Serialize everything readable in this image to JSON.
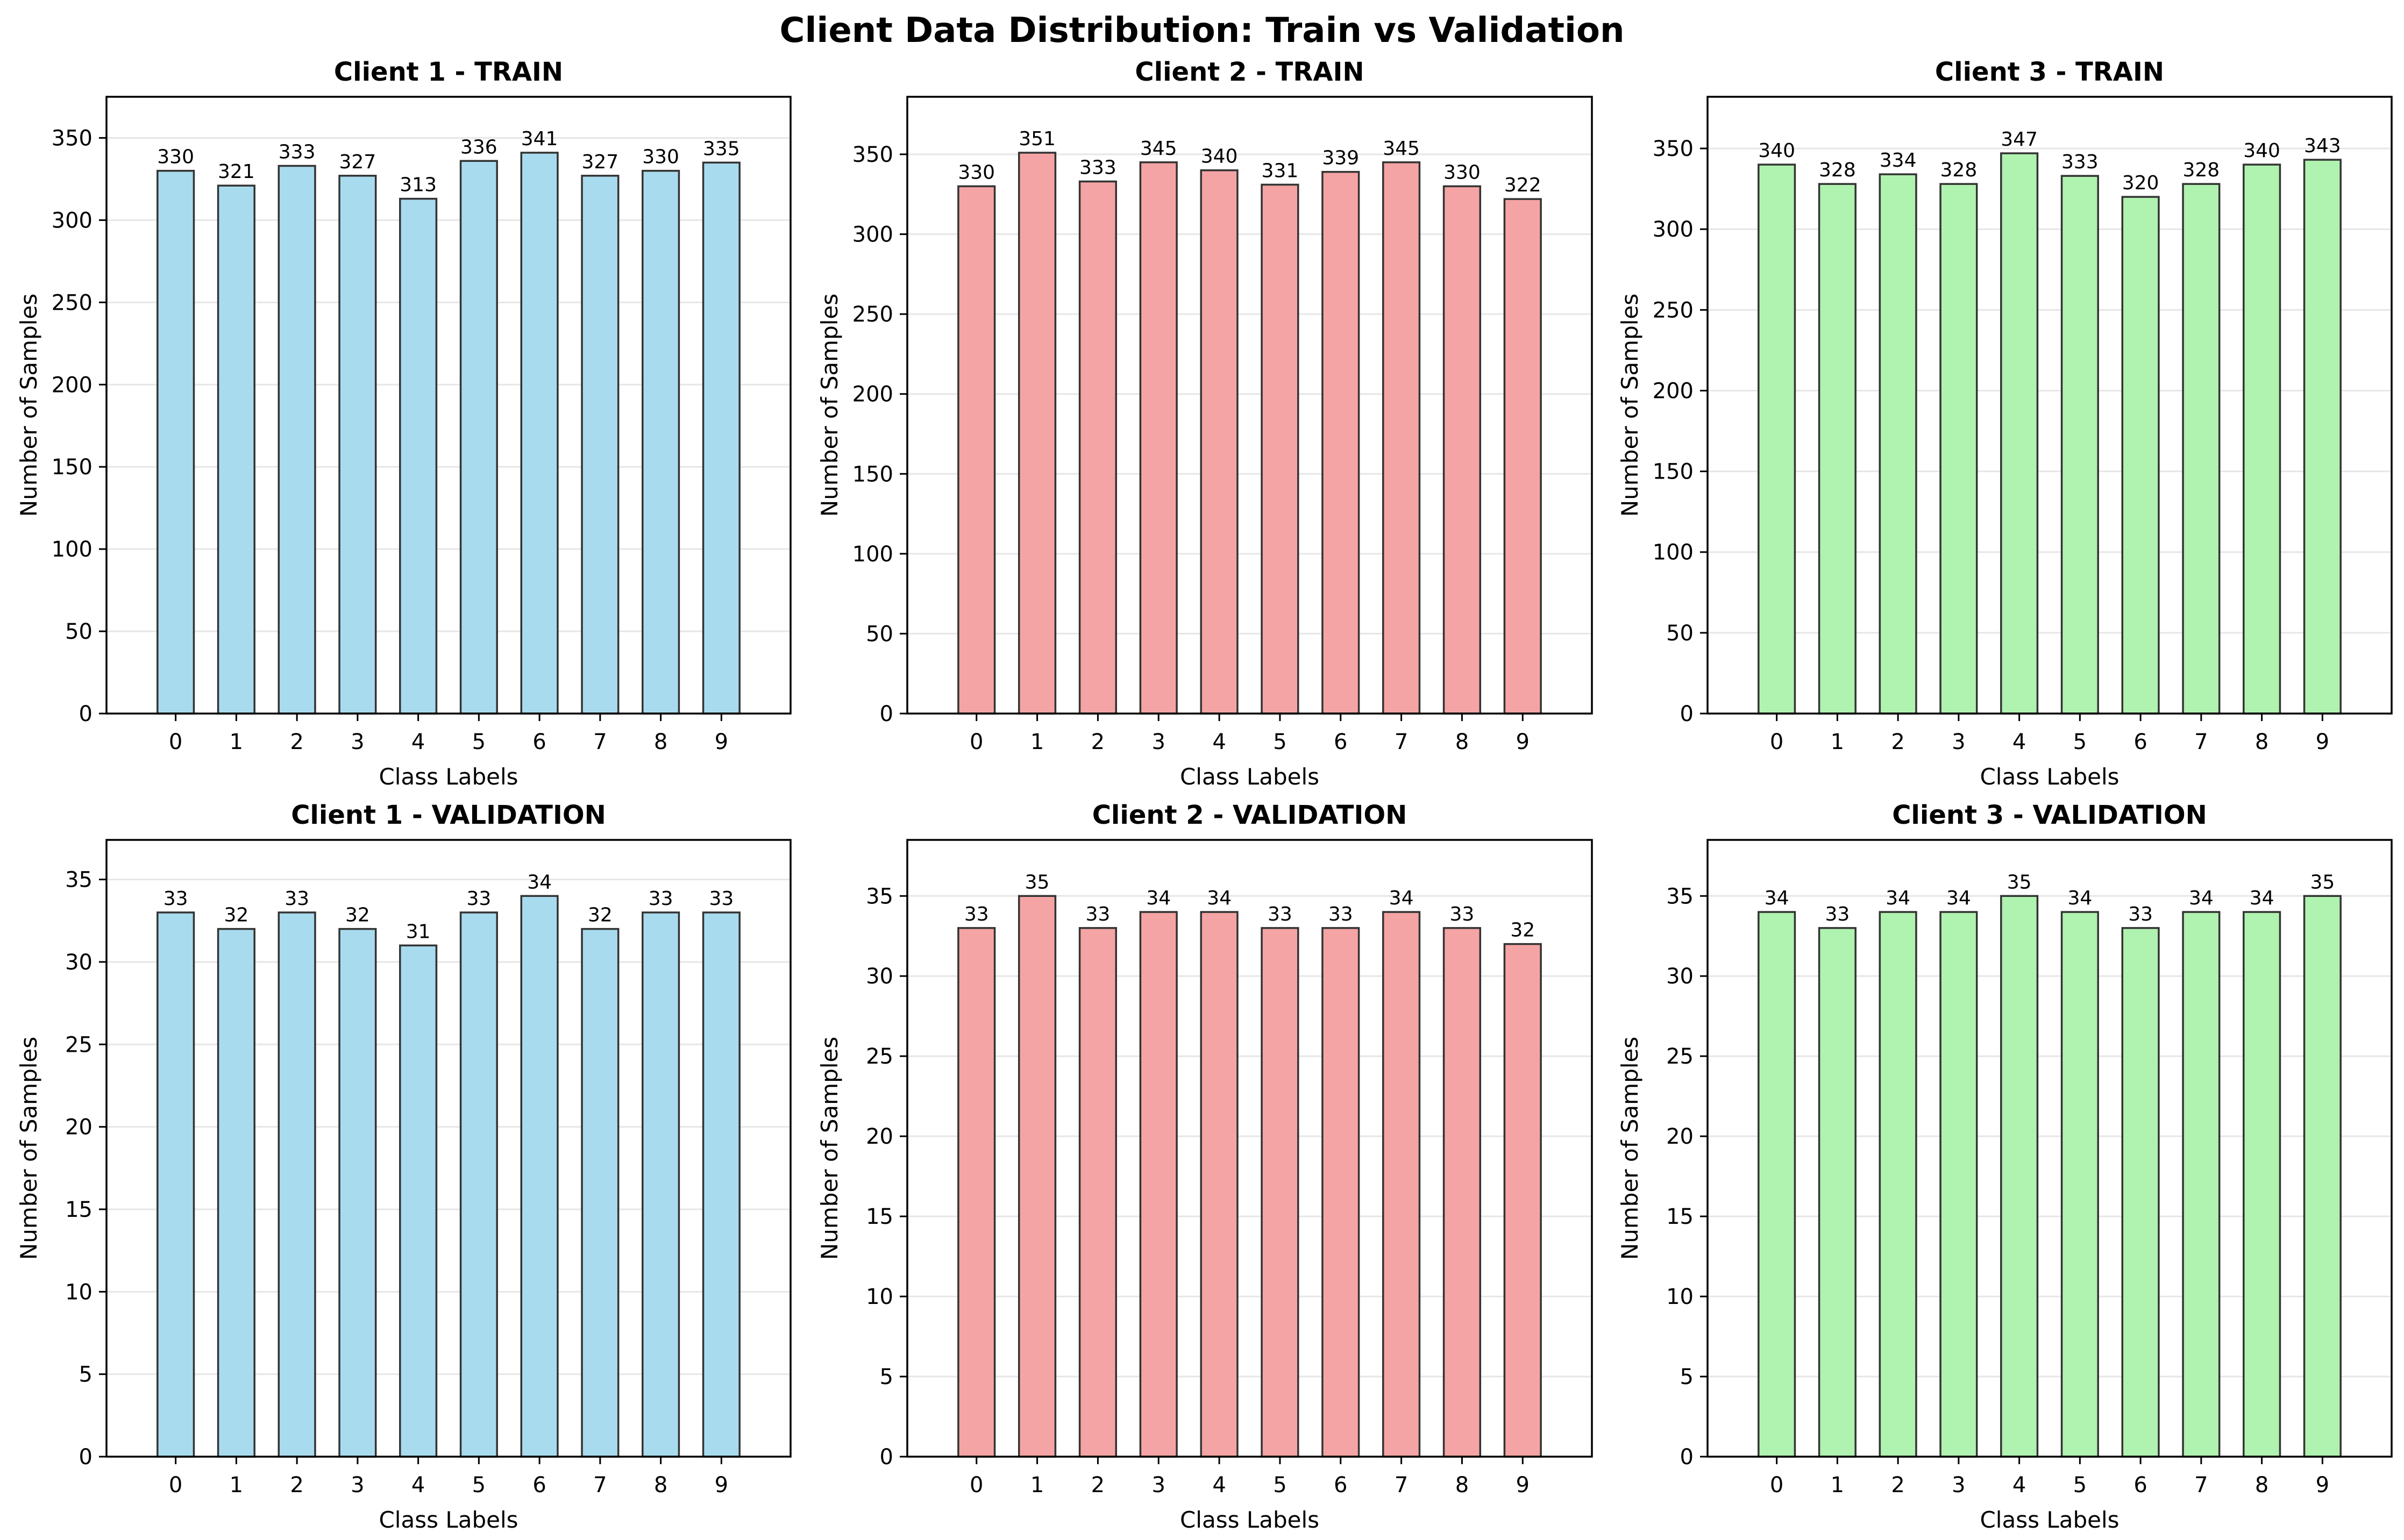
{
  "suptitle": "Client Data Distribution: Train vs Validation",
  "categories": [
    "0",
    "1",
    "2",
    "3",
    "4",
    "5",
    "6",
    "7",
    "8",
    "9"
  ],
  "colors": {
    "client1": "#a9dbee",
    "client2": "#f4a4a4",
    "client3": "#b0f2b0",
    "edge": "#333333",
    "grid": "#e6e6e6"
  },
  "chart_data": [
    {
      "type": "bar",
      "title": "Client 1 - TRAIN",
      "xlabel": "Class Labels",
      "ylabel": "Number of Samples",
      "categories": [
        "0",
        "1",
        "2",
        "3",
        "4",
        "5",
        "6",
        "7",
        "8",
        "9"
      ],
      "values": [
        330,
        321,
        333,
        327,
        313,
        336,
        341,
        327,
        330,
        335
      ],
      "ylim": [
        0,
        375
      ],
      "yticks": [
        0,
        50,
        100,
        150,
        200,
        250,
        300,
        350
      ],
      "color": "client1",
      "grid": true
    },
    {
      "type": "bar",
      "title": "Client 2 - TRAIN",
      "xlabel": "Class Labels",
      "ylabel": "Number of Samples",
      "categories": [
        "0",
        "1",
        "2",
        "3",
        "4",
        "5",
        "6",
        "7",
        "8",
        "9"
      ],
      "values": [
        330,
        351,
        333,
        345,
        340,
        331,
        339,
        345,
        330,
        322
      ],
      "ylim": [
        0,
        386
      ],
      "yticks": [
        0,
        50,
        100,
        150,
        200,
        250,
        300,
        350
      ],
      "color": "client2",
      "grid": true
    },
    {
      "type": "bar",
      "title": "Client 3 - TRAIN",
      "xlabel": "Class Labels",
      "ylabel": "Number of Samples",
      "categories": [
        "0",
        "1",
        "2",
        "3",
        "4",
        "5",
        "6",
        "7",
        "8",
        "9"
      ],
      "values": [
        340,
        328,
        334,
        328,
        347,
        333,
        320,
        328,
        340,
        343
      ],
      "ylim": [
        0,
        382
      ],
      "yticks": [
        0,
        50,
        100,
        150,
        200,
        250,
        300,
        350
      ],
      "color": "client3",
      "grid": true
    },
    {
      "type": "bar",
      "title": "Client 1 - VALIDATION",
      "xlabel": "Class Labels",
      "ylabel": "Number of Samples",
      "categories": [
        "0",
        "1",
        "2",
        "3",
        "4",
        "5",
        "6",
        "7",
        "8",
        "9"
      ],
      "values": [
        33,
        32,
        33,
        32,
        31,
        33,
        34,
        32,
        33,
        33
      ],
      "ylim": [
        0,
        37.4
      ],
      "yticks": [
        0,
        5,
        10,
        15,
        20,
        25,
        30,
        35
      ],
      "color": "client1",
      "grid": true
    },
    {
      "type": "bar",
      "title": "Client 2 - VALIDATION",
      "xlabel": "Class Labels",
      "ylabel": "Number of Samples",
      "categories": [
        "0",
        "1",
        "2",
        "3",
        "4",
        "5",
        "6",
        "7",
        "8",
        "9"
      ],
      "values": [
        33,
        35,
        33,
        34,
        34,
        33,
        33,
        34,
        33,
        32
      ],
      "ylim": [
        0,
        38.5
      ],
      "yticks": [
        0,
        5,
        10,
        15,
        20,
        25,
        30,
        35
      ],
      "color": "client2",
      "grid": true
    },
    {
      "type": "bar",
      "title": "Client 3 - VALIDATION",
      "xlabel": "Class Labels",
      "ylabel": "Number of Samples",
      "categories": [
        "0",
        "1",
        "2",
        "3",
        "4",
        "5",
        "6",
        "7",
        "8",
        "9"
      ],
      "values": [
        34,
        33,
        34,
        34,
        35,
        34,
        33,
        34,
        34,
        35
      ],
      "ylim": [
        0,
        38.5
      ],
      "yticks": [
        0,
        5,
        10,
        15,
        20,
        25,
        30,
        35
      ],
      "color": "client3",
      "grid": true
    }
  ]
}
